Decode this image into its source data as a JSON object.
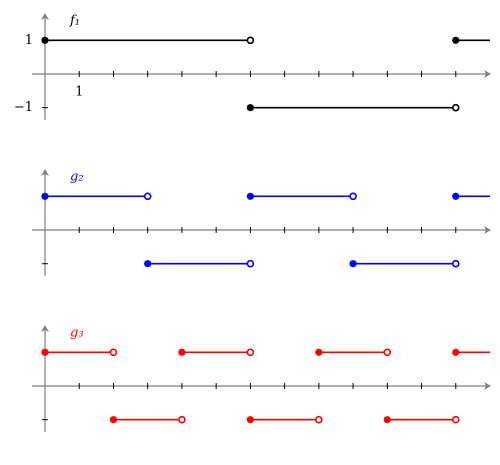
{
  "chart_data": [
    {
      "type": "step",
      "label": "f₁",
      "color": "#000000",
      "xlim": [
        0,
        13
      ],
      "xticks": [
        1,
        2,
        3,
        4,
        5,
        6,
        7,
        8,
        9,
        10,
        11,
        12
      ],
      "yticks": [
        1,
        {
          "value": -1,
          "label": "−1"
        }
      ],
      "ytick_labels": true,
      "x_label": 1,
      "pieces": [
        {
          "from": 0,
          "to": 6,
          "value": 1
        },
        {
          "from": 6,
          "to": 12,
          "value": -1
        },
        {
          "from": 12,
          "to": 13,
          "value": 1
        }
      ]
    },
    {
      "type": "step",
      "label": "g₂",
      "color": "#0000ff",
      "xlim": [
        0,
        13
      ],
      "xticks": [
        1,
        2,
        3,
        4,
        5,
        6,
        7,
        8,
        9,
        10,
        11,
        12
      ],
      "yticks": [
        1,
        -1
      ],
      "ytick_labels": false,
      "pieces": [
        {
          "from": 0,
          "to": 3,
          "value": 1
        },
        {
          "from": 3,
          "to": 6,
          "value": -1
        },
        {
          "from": 6,
          "to": 9,
          "value": 1
        },
        {
          "from": 9,
          "to": 12,
          "value": -1
        },
        {
          "from": 12,
          "to": 13,
          "value": 1
        }
      ]
    },
    {
      "type": "step",
      "label": "g₃",
      "color": "#ff0000",
      "xlim": [
        0,
        13
      ],
      "xticks": [
        1,
        2,
        3,
        4,
        5,
        6,
        7,
        8,
        9,
        10,
        11,
        12
      ],
      "yticks": [
        1,
        -1
      ],
      "ytick_labels": false,
      "pieces": [
        {
          "from": 0,
          "to": 2,
          "value": 1
        },
        {
          "from": 2,
          "to": 4,
          "value": -1
        },
        {
          "from": 4,
          "to": 6,
          "value": 1
        },
        {
          "from": 6,
          "to": 8,
          "value": -1
        },
        {
          "from": 8,
          "to": 10,
          "value": 1
        },
        {
          "from": 10,
          "to": 12,
          "value": -1
        },
        {
          "from": 12,
          "to": 13,
          "value": 1
        }
      ]
    }
  ]
}
